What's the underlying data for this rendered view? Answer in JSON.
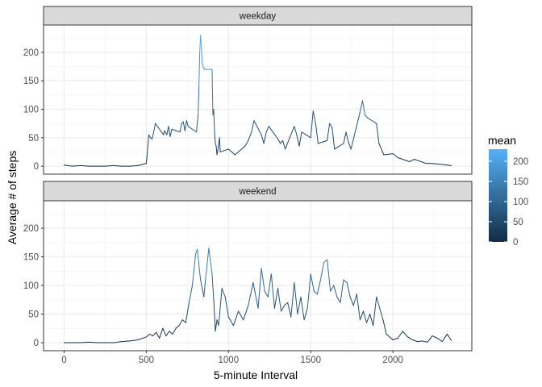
{
  "chart_data": {
    "type": "line",
    "xlabel": "5-minute Interval",
    "ylabel": "Average # of steps",
    "xlim": [
      -125,
      2480
    ],
    "ylim": [
      -14,
      248
    ],
    "xticks": [
      0,
      500,
      1000,
      1500,
      2000
    ],
    "yticks": [
      0,
      50,
      100,
      150,
      200
    ],
    "grid": true,
    "legend": {
      "title": "mean",
      "position": "right",
      "ticks": [
        0,
        50,
        100,
        150,
        200
      ],
      "range": [
        0,
        230
      ],
      "color_low": "#132B43",
      "color_high": "#56B1F7"
    },
    "panels": [
      {
        "label": "weekday",
        "x": [
          0,
          50,
          100,
          150,
          200,
          250,
          300,
          350,
          400,
          450,
          500,
          505,
          515,
          525,
          535,
          545,
          555,
          605,
          610,
          615,
          625,
          635,
          645,
          655,
          705,
          715,
          725,
          735,
          745,
          755,
          805,
          815,
          820,
          825,
          830,
          835,
          840,
          845,
          850,
          855,
          900,
          905,
          910,
          915,
          920,
          925,
          930,
          935,
          940,
          945,
          950,
          1000,
          1020,
          1040,
          1100,
          1120,
          1140,
          1155,
          1200,
          1215,
          1230,
          1245,
          1300,
          1315,
          1330,
          1345,
          1400,
          1415,
          1430,
          1445,
          1500,
          1515,
          1530,
          1545,
          1600,
          1615,
          1630,
          1645,
          1700,
          1715,
          1730,
          1745,
          1800,
          1815,
          1830,
          1845,
          1900,
          1915,
          1930,
          1945,
          2000,
          2030,
          2100,
          2130,
          2200,
          2230,
          2300,
          2330,
          2355
        ],
        "y": [
          2,
          0,
          1,
          0,
          0,
          0,
          1,
          0,
          0,
          1,
          5,
          20,
          55,
          50,
          48,
          60,
          75,
          55,
          62,
          60,
          55,
          70,
          52,
          65,
          60,
          75,
          78,
          62,
          80,
          70,
          60,
          90,
          140,
          200,
          230,
          210,
          180,
          175,
          172,
          170,
          170,
          90,
          100,
          60,
          40,
          35,
          20,
          28,
          40,
          50,
          25,
          30,
          25,
          20,
          35,
          45,
          60,
          80,
          55,
          40,
          60,
          70,
          48,
          40,
          45,
          30,
          70,
          55,
          35,
          60,
          50,
          97,
          75,
          40,
          45,
          75,
          68,
          30,
          40,
          60,
          42,
          30,
          95,
          115,
          90,
          85,
          75,
          40,
          30,
          20,
          22,
          15,
          8,
          12,
          5,
          5,
          3,
          2,
          1
        ]
      },
      {
        "label": "weekend",
        "x": [
          0,
          50,
          100,
          150,
          200,
          250,
          300,
          350,
          400,
          450,
          500,
          520,
          540,
          560,
          580,
          600,
          620,
          640,
          660,
          680,
          700,
          720,
          740,
          760,
          780,
          800,
          810,
          820,
          830,
          840,
          850,
          860,
          880,
          900,
          910,
          920,
          930,
          940,
          960,
          980,
          1000,
          1030,
          1060,
          1090,
          1120,
          1150,
          1180,
          1200,
          1220,
          1240,
          1260,
          1280,
          1300,
          1320,
          1340,
          1360,
          1380,
          1400,
          1420,
          1440,
          1460,
          1480,
          1500,
          1520,
          1540,
          1560,
          1580,
          1600,
          1620,
          1640,
          1660,
          1680,
          1700,
          1720,
          1740,
          1760,
          1780,
          1800,
          1820,
          1840,
          1860,
          1880,
          1900,
          1920,
          1940,
          1960,
          1980,
          2000,
          2030,
          2060,
          2090,
          2120,
          2150,
          2180,
          2210,
          2240,
          2270,
          2300,
          2330,
          2355
        ],
        "y": [
          0,
          0,
          0,
          1,
          0,
          0,
          0,
          2,
          3,
          5,
          10,
          15,
          12,
          18,
          8,
          25,
          12,
          20,
          15,
          25,
          30,
          40,
          35,
          70,
          100,
          155,
          163,
          135,
          110,
          95,
          80,
          110,
          165,
          120,
          75,
          20,
          40,
          30,
          95,
          80,
          45,
          30,
          55,
          40,
          65,
          105,
          60,
          130,
          90,
          80,
          120,
          60,
          95,
          55,
          65,
          70,
          45,
          105,
          50,
          80,
          40,
          60,
          120,
          90,
          85,
          110,
          140,
          145,
          90,
          100,
          80,
          70,
          110,
          105,
          80,
          65,
          85,
          40,
          55,
          35,
          50,
          30,
          80,
          60,
          40,
          15,
          10,
          5,
          8,
          20,
          10,
          5,
          2,
          3,
          1,
          12,
          8,
          2,
          15,
          4
        ]
      }
    ]
  }
}
